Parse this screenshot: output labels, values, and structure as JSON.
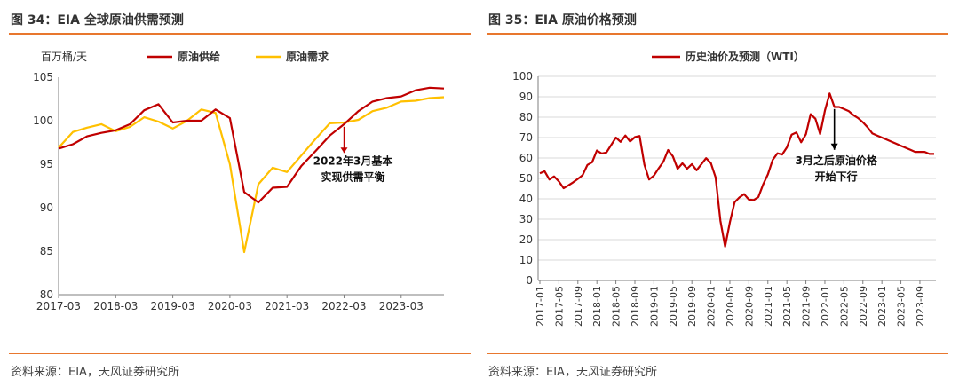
{
  "left": {
    "title": "图 34：EIA 全球原油供需预测",
    "source": "资料来源：EIA，天风证券研究所",
    "annotation": [
      "2022年3月基本",
      "实现供需平衡"
    ]
  },
  "right": {
    "title": "图 35：EIA 原油价格预测",
    "source": "资料来源：EIA，天风证券研究所",
    "annotation": [
      "3月之后原油价格",
      "开始下行"
    ]
  },
  "colors": {
    "red": "#c00000",
    "yellow": "#ffc000",
    "accent": "#e8772e"
  },
  "chart_data": [
    {
      "type": "line",
      "title": "",
      "ylabel": "百万桶/天",
      "ylim": [
        80,
        105
      ],
      "yticks": [
        80,
        85,
        90,
        95,
        100,
        105
      ],
      "xticks": [
        "2017-03",
        "2018-03",
        "2019-03",
        "2020-03",
        "2021-03",
        "2022-03",
        "2023-03"
      ],
      "grid": false,
      "legend": "top",
      "x": [
        "2017-03",
        "2017-06",
        "2017-09",
        "2017-12",
        "2018-03",
        "2018-06",
        "2018-09",
        "2018-12",
        "2019-03",
        "2019-06",
        "2019-09",
        "2019-12",
        "2020-03",
        "2020-06",
        "2020-09",
        "2020-12",
        "2021-03",
        "2021-06",
        "2021-09",
        "2021-12",
        "2022-03",
        "2022-06",
        "2022-09",
        "2022-12",
        "2023-03",
        "2023-06",
        "2023-09",
        "2023-12"
      ],
      "series": [
        {
          "name": "原油供给",
          "color": "#c00000",
          "values": [
            96.8,
            97.3,
            98.2,
            98.6,
            98.9,
            99.6,
            101.2,
            101.9,
            99.8,
            100.0,
            100.0,
            101.3,
            100.3,
            91.8,
            90.6,
            92.3,
            92.4,
            94.8,
            96.5,
            98.3,
            99.6,
            101.1,
            102.2,
            102.6,
            102.8,
            103.5,
            103.8,
            103.7
          ]
        },
        {
          "name": "原油需求",
          "color": "#ffc000",
          "values": [
            96.9,
            98.7,
            99.2,
            99.6,
            98.8,
            99.3,
            100.4,
            99.9,
            99.1,
            100.0,
            101.3,
            100.9,
            95.0,
            84.9,
            92.7,
            94.6,
            94.1,
            96.0,
            97.9,
            99.7,
            99.8,
            100.1,
            101.1,
            101.5,
            102.2,
            102.3,
            102.6,
            102.7
          ]
        }
      ],
      "annotation": {
        "text": "2022年3月基本实现供需平衡",
        "x": "2022-03"
      }
    },
    {
      "type": "line",
      "title": "",
      "ylim": [
        0,
        100
      ],
      "yticks": [
        0,
        10,
        20,
        30,
        40,
        50,
        60,
        70,
        80,
        90,
        100
      ],
      "xticks": [
        "2017-01",
        "2017-05",
        "2017-09",
        "2018-01",
        "2018-05",
        "2018-09",
        "2019-01",
        "2019-05",
        "2019-09",
        "2020-01",
        "2020-05",
        "2020-09",
        "2021-01",
        "2021-05",
        "2021-09",
        "2022-01",
        "2022-05",
        "2022-09",
        "2023-01",
        "2023-05",
        "2023-09"
      ],
      "grid": true,
      "legend": "top",
      "x": [
        "2017-01",
        "2017-02",
        "2017-03",
        "2017-04",
        "2017-05",
        "2017-06",
        "2017-07",
        "2017-08",
        "2017-09",
        "2017-10",
        "2017-11",
        "2017-12",
        "2018-01",
        "2018-02",
        "2018-03",
        "2018-04",
        "2018-05",
        "2018-06",
        "2018-07",
        "2018-08",
        "2018-09",
        "2018-10",
        "2018-11",
        "2018-12",
        "2019-01",
        "2019-02",
        "2019-03",
        "2019-04",
        "2019-05",
        "2019-06",
        "2019-07",
        "2019-08",
        "2019-09",
        "2019-10",
        "2019-11",
        "2019-12",
        "2020-01",
        "2020-02",
        "2020-03",
        "2020-04",
        "2020-05",
        "2020-06",
        "2020-07",
        "2020-08",
        "2020-09",
        "2020-10",
        "2020-11",
        "2020-12",
        "2021-01",
        "2021-02",
        "2021-03",
        "2021-04",
        "2021-05",
        "2021-06",
        "2021-07",
        "2021-08",
        "2021-09",
        "2021-10",
        "2021-11",
        "2021-12",
        "2022-01",
        "2022-02",
        "2022-03",
        "2022-04",
        "2022-05",
        "2022-06",
        "2022-07",
        "2022-08",
        "2022-09",
        "2022-10",
        "2022-11",
        "2022-12",
        "2023-01",
        "2023-02",
        "2023-03",
        "2023-04",
        "2023-05",
        "2023-06",
        "2023-07",
        "2023-08",
        "2023-09",
        "2023-10",
        "2023-11",
        "2023-12"
      ],
      "series": [
        {
          "name": "历史油价及预测（WTI）",
          "color": "#c00000",
          "values": [
            52.5,
            53.5,
            49.5,
            51.0,
            48.5,
            45.2,
            46.6,
            48.1,
            49.8,
            51.6,
            56.6,
            57.9,
            63.7,
            62.2,
            62.7,
            66.3,
            70.0,
            67.9,
            71.0,
            68.1,
            70.2,
            70.8,
            56.7,
            49.5,
            51.4,
            54.9,
            58.2,
            63.9,
            60.8,
            54.7,
            57.4,
            54.8,
            57.0,
            54.0,
            57.0,
            59.9,
            57.5,
            50.5,
            29.2,
            16.6,
            28.5,
            38.3,
            40.7,
            42.3,
            39.6,
            39.4,
            40.9,
            47.0,
            52.0,
            59.0,
            62.3,
            61.7,
            65.2,
            71.4,
            72.5,
            67.7,
            71.6,
            81.5,
            79.2,
            71.7,
            83.2,
            91.6,
            85.0,
            85.0,
            84.0,
            83.0,
            81.0,
            79.5,
            77.5,
            75.0,
            72.0,
            71.0,
            70.0,
            69.0,
            68.0,
            67.0,
            66.0,
            65.0,
            64.0,
            63.0,
            63.0,
            63.0,
            62.0,
            62.0
          ]
        }
      ],
      "annotation": {
        "text": "3月之后原油价格开始下行",
        "x": "2022-03"
      }
    }
  ]
}
